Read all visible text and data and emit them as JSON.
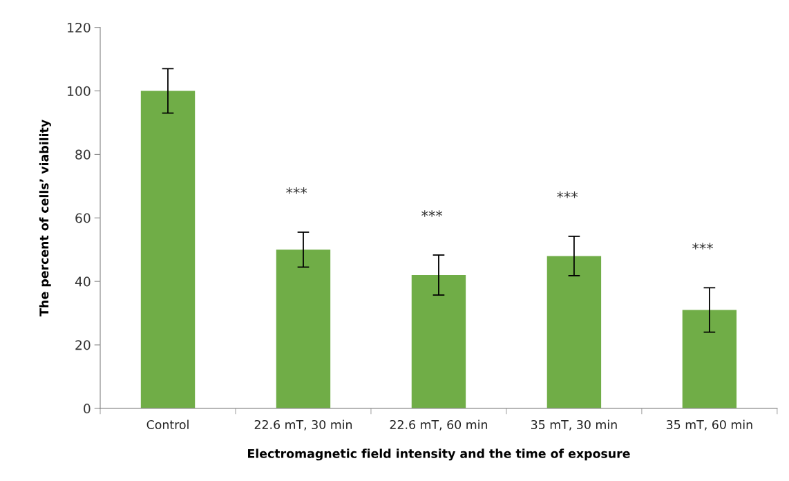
{
  "chart_data": {
    "type": "bar",
    "xlabel": "Electromagnetic field intensity and the time of exposure",
    "ylabel": "The percent of cells’ viability",
    "categories": [
      "Control",
      "22.6 mT, 30 min",
      "22.6 mT, 60 min",
      "35 mT, 30 min",
      "35 mT, 60 min"
    ],
    "values": [
      100,
      50,
      42,
      48,
      31
    ],
    "errors": [
      7,
      5.5,
      6.3,
      6.2,
      7
    ],
    "color": "#70ad47",
    "ylim": [
      0,
      120
    ],
    "yticks": [
      0,
      20,
      40,
      60,
      80,
      100,
      120
    ],
    "annotations": [
      "***",
      "***",
      "***",
      "***"
    ],
    "grid": false,
    "legend": false
  }
}
